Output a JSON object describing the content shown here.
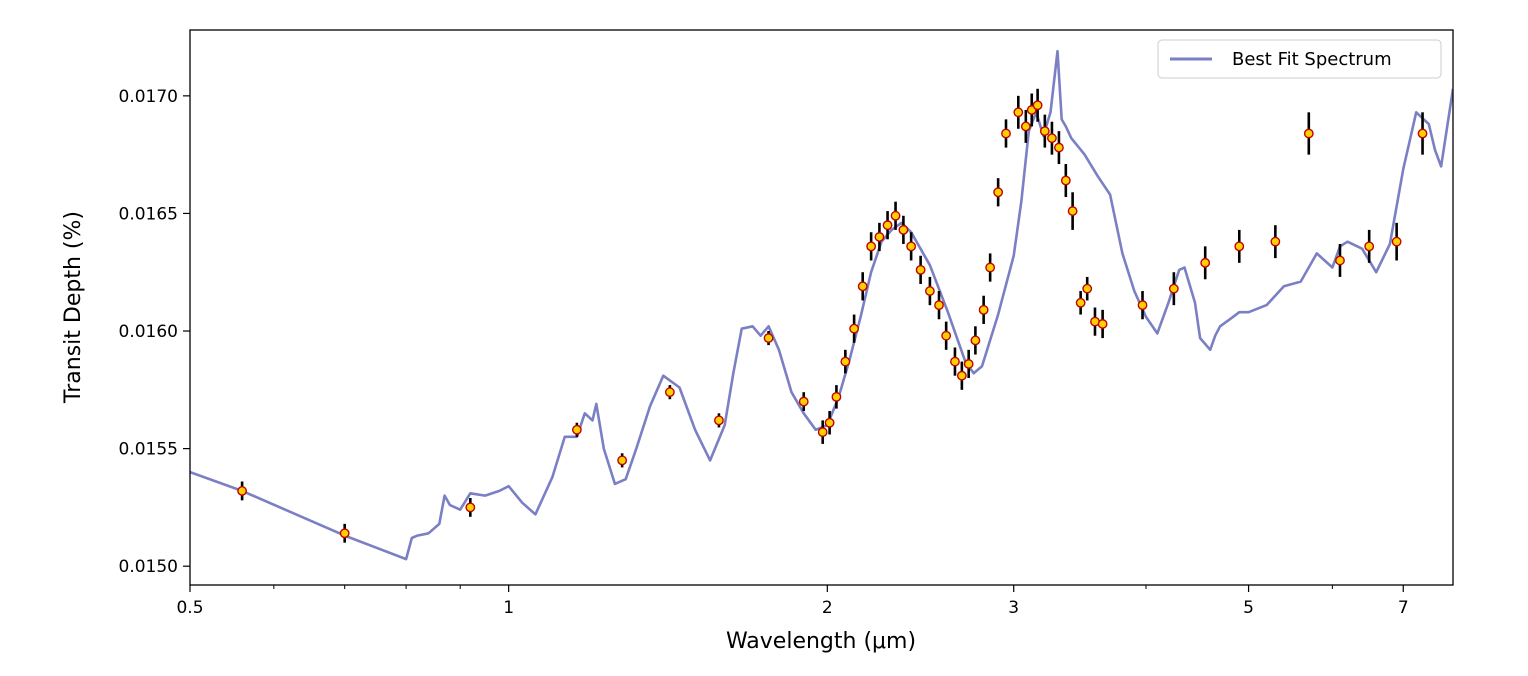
{
  "chart_data": {
    "type": "line",
    "xlabel": "Wavelength (μm)",
    "ylabel": "Transit Depth (%)",
    "x_scale": "log",
    "xlim": [
      0.5,
      7.8
    ],
    "ylim": [
      0.01492,
      0.01728
    ],
    "x_ticks": [
      0.5,
      1,
      2,
      3,
      5,
      7
    ],
    "x_tick_labels": [
      "0.5",
      "1",
      "2",
      "3",
      "5",
      "7"
    ],
    "y_ticks": [
      0.015,
      0.0155,
      0.016,
      0.0165,
      0.017
    ],
    "y_tick_labels": [
      "0.0150",
      "0.0155",
      "0.0160",
      "0.0165",
      "0.0170"
    ],
    "grid": false,
    "legend_position": "top-right",
    "series": [
      {
        "name": "Best Fit Spectrum",
        "color": "#7b7fc4",
        "x": [
          0.5,
          0.56,
          0.7,
          0.8,
          0.81,
          0.82,
          0.84,
          0.86,
          0.87,
          0.88,
          0.9,
          0.92,
          0.95,
          0.98,
          1.0,
          1.03,
          1.06,
          1.1,
          1.13,
          1.16,
          1.18,
          1.2,
          1.21,
          1.23,
          1.26,
          1.29,
          1.32,
          1.36,
          1.4,
          1.45,
          1.5,
          1.55,
          1.6,
          1.63,
          1.66,
          1.7,
          1.73,
          1.76,
          1.8,
          1.85,
          1.9,
          1.95,
          2.0,
          2.05,
          2.1,
          2.15,
          2.2,
          2.25,
          2.3,
          2.35,
          2.4,
          2.5,
          2.6,
          2.7,
          2.75,
          2.8,
          2.9,
          3.0,
          3.05,
          3.1,
          3.15,
          3.2,
          3.25,
          3.3,
          3.33,
          3.36,
          3.4,
          3.5,
          3.6,
          3.7,
          3.8,
          3.9,
          4.0,
          4.1,
          4.2,
          4.3,
          4.35,
          4.45,
          4.5,
          4.6,
          4.65,
          4.7,
          4.8,
          4.9,
          5.0,
          5.2,
          5.4,
          5.6,
          5.8,
          6.0,
          6.1,
          6.2,
          6.4,
          6.6,
          6.8,
          7.0,
          7.1,
          7.2,
          7.4,
          7.5,
          7.6,
          7.8
        ],
        "values": [
          0.0154,
          0.01532,
          0.01513,
          0.01503,
          0.01512,
          0.01513,
          0.01514,
          0.01518,
          0.0153,
          0.01526,
          0.01524,
          0.01531,
          0.0153,
          0.01532,
          0.01534,
          0.01527,
          0.01522,
          0.01538,
          0.01555,
          0.01555,
          0.01565,
          0.01562,
          0.01569,
          0.0155,
          0.01535,
          0.01537,
          0.0155,
          0.01568,
          0.01581,
          0.01576,
          0.01558,
          0.01545,
          0.0156,
          0.01582,
          0.01601,
          0.01602,
          0.01598,
          0.01602,
          0.01592,
          0.01574,
          0.01565,
          0.01558,
          0.0156,
          0.01572,
          0.01588,
          0.01606,
          0.01625,
          0.01638,
          0.01643,
          0.01646,
          0.01642,
          0.01628,
          0.01608,
          0.01587,
          0.01582,
          0.01585,
          0.01607,
          0.01632,
          0.01655,
          0.01685,
          0.01693,
          0.01683,
          0.01693,
          0.01719,
          0.0169,
          0.01687,
          0.01682,
          0.01675,
          0.01666,
          0.01658,
          0.01633,
          0.01617,
          0.01606,
          0.01599,
          0.01612,
          0.01626,
          0.01627,
          0.01612,
          0.01597,
          0.01592,
          0.01598,
          0.01602,
          0.01605,
          0.01608,
          0.01608,
          0.01611,
          0.01619,
          0.01621,
          0.01633,
          0.01627,
          0.01636,
          0.01638,
          0.01635,
          0.01625,
          0.01637,
          0.01669,
          0.01681,
          0.01693,
          0.01688,
          0.01677,
          0.0167,
          0.01703
        ]
      },
      {
        "name": "",
        "type": "scatter",
        "marker_color": "#ffd000",
        "marker_edge": "#c00000",
        "x": [
          0.56,
          0.7,
          0.92,
          1.16,
          1.28,
          1.42,
          1.58,
          1.76,
          1.9,
          1.98,
          2.01,
          2.04,
          2.08,
          2.12,
          2.16,
          2.2,
          2.24,
          2.28,
          2.32,
          2.36,
          2.4,
          2.45,
          2.5,
          2.55,
          2.59,
          2.64,
          2.68,
          2.72,
          2.76,
          2.81,
          2.85,
          2.9,
          2.95,
          3.03,
          3.08,
          3.12,
          3.16,
          3.21,
          3.26,
          3.31,
          3.36,
          3.41,
          3.47,
          3.52,
          3.58,
          3.64,
          3.97,
          4.25,
          4.55,
          4.9,
          5.3,
          5.7,
          6.1,
          6.5,
          6.9,
          7.3
        ],
        "values": [
          0.01532,
          0.01514,
          0.01525,
          0.01558,
          0.01545,
          0.01574,
          0.01562,
          0.01597,
          0.0157,
          0.01557,
          0.01561,
          0.01572,
          0.01587,
          0.01601,
          0.01619,
          0.01636,
          0.0164,
          0.01645,
          0.01649,
          0.01643,
          0.01636,
          0.01626,
          0.01617,
          0.01611,
          0.01598,
          0.01587,
          0.01581,
          0.01586,
          0.01596,
          0.01609,
          0.01627,
          0.01659,
          0.01684,
          0.01693,
          0.01687,
          0.01694,
          0.01696,
          0.01685,
          0.01682,
          0.01678,
          0.01664,
          0.01651,
          0.01612,
          0.01618,
          0.01604,
          0.01603,
          0.01611,
          0.01618,
          0.01629,
          0.01636,
          0.01638,
          0.01684,
          0.0163,
          0.01636,
          0.01638,
          0.01684
        ],
        "errors": [
          4e-05,
          4e-05,
          4e-05,
          3e-05,
          3e-05,
          3e-05,
          3e-05,
          3e-05,
          4e-05,
          5e-05,
          5e-05,
          5e-05,
          5e-05,
          6e-05,
          6e-05,
          6e-05,
          6e-05,
          6e-05,
          6e-05,
          6e-05,
          6e-05,
          6e-05,
          6e-05,
          6e-05,
          6e-05,
          6e-05,
          6e-05,
          6e-05,
          6e-05,
          6e-05,
          6e-05,
          6e-05,
          6e-05,
          7e-05,
          7e-05,
          7e-05,
          7e-05,
          7e-05,
          7e-05,
          7e-05,
          7e-05,
          8e-05,
          5e-05,
          5e-05,
          6e-05,
          6e-05,
          6e-05,
          7e-05,
          7e-05,
          7e-05,
          7e-05,
          9e-05,
          7e-05,
          7e-05,
          8e-05,
          9e-05
        ]
      }
    ]
  }
}
